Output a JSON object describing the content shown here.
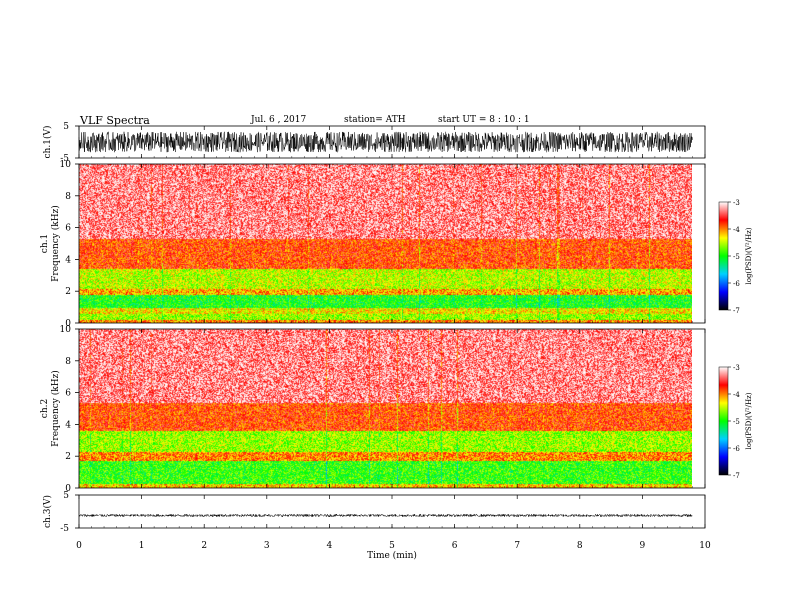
{
  "header": {
    "title": "VLF  Spectra",
    "date": "Jul.  6  , 2017",
    "station": "station= ATH",
    "start_ut": "start  UT  =   8  : 10 : 1"
  },
  "chart_data": [
    {
      "type": "line",
      "panel": "ch1-waveform",
      "ylabel": "ch.1(V)",
      "yticks": [
        "5",
        "-5"
      ],
      "ylim": [
        -5,
        5
      ],
      "x_range_min": [
        0,
        9.8
      ],
      "amplitude_envelope_v": [
        -3.2,
        3.2
      ],
      "color": "#000000"
    },
    {
      "type": "heatmap",
      "panel": "ch1-spectrogram",
      "ylabel": "ch.1\nFrequency  (kHz)",
      "ylim": [
        0,
        10
      ],
      "yticks": [
        0,
        2,
        4,
        6,
        8,
        10
      ],
      "x_range_min": [
        0,
        9.8
      ],
      "frequency_bands_khz": [
        {
          "from": 0,
          "to": 0.2,
          "log_psd": -4.0
        },
        {
          "from": 0.2,
          "to": 0.6,
          "log_psd": -4.6
        },
        {
          "from": 0.6,
          "to": 1.0,
          "log_psd": -4.3
        },
        {
          "from": 1.0,
          "to": 1.8,
          "log_psd": -5.0
        },
        {
          "from": 1.8,
          "to": 2.2,
          "log_psd": -4.1
        },
        {
          "from": 2.2,
          "to": 3.4,
          "log_psd": -4.5
        },
        {
          "from": 3.4,
          "to": 5.3,
          "log_psd": -3.8
        },
        {
          "from": 5.3,
          "to": 10,
          "log_psd": -3.3
        }
      ]
    },
    {
      "type": "heatmap",
      "panel": "ch2-spectrogram",
      "ylabel": "ch.2\nFrequency  (kHz)",
      "ylim": [
        0,
        10
      ],
      "yticks": [
        0,
        2,
        4,
        6,
        8,
        10
      ],
      "x_range_min": [
        0,
        9.8
      ],
      "frequency_bands_khz": [
        {
          "from": 0,
          "to": 0.3,
          "log_psd": -4.2
        },
        {
          "from": 0.3,
          "to": 1.7,
          "log_psd": -4.9
        },
        {
          "from": 1.7,
          "to": 2.3,
          "log_psd": -4.0
        },
        {
          "from": 2.3,
          "to": 3.6,
          "log_psd": -4.6
        },
        {
          "from": 3.6,
          "to": 5.4,
          "log_psd": -3.8
        },
        {
          "from": 5.4,
          "to": 10,
          "log_psd": -3.3
        }
      ]
    },
    {
      "type": "line",
      "panel": "ch3-waveform",
      "ylabel": "ch.3(V)",
      "yticks": [
        "5",
        "-5"
      ],
      "ylim": [
        -5,
        5
      ],
      "x_range_min": [
        0,
        9.8
      ],
      "amplitude_envelope_v": [
        -0.4,
        0.4
      ],
      "offset_v": -1.2,
      "color": "#000000"
    }
  ],
  "x_axis": {
    "label": "Time  (min)",
    "ticks": [
      0,
      1,
      2,
      3,
      4,
      5,
      6,
      7,
      8,
      9,
      10
    ],
    "xlim": [
      0,
      10
    ]
  },
  "colorbar": {
    "label": "log(PSD)(V²/Hz)",
    "ticks": [
      "-3",
      "-4",
      "-5",
      "-6",
      "-7"
    ],
    "range": [
      -7,
      -3
    ],
    "colors": [
      "#000000",
      "#0000ff",
      "#00d0ff",
      "#00ff00",
      "#ffff00",
      "#ff0000",
      "#ffffff"
    ]
  }
}
